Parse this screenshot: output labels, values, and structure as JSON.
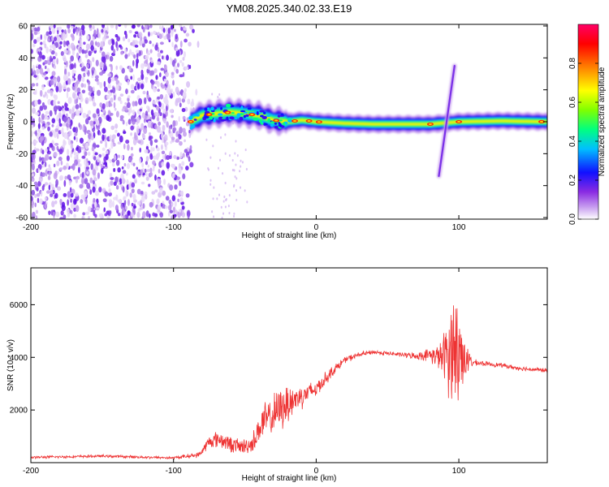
{
  "title": "YM08.2025.340.02.33.E19",
  "chart_data": [
    {
      "type": "heatmap",
      "title": "YM08.2025.340.02.33.E19",
      "xlabel": "Height of straight line (km)",
      "ylabel": "Frequency (Hz)",
      "xlim": [
        -200,
        162
      ],
      "ylim": [
        -61,
        61
      ],
      "x_ticks": [
        -200,
        -100,
        0,
        100
      ],
      "y_ticks": [
        -60,
        -40,
        -20,
        0,
        20,
        40,
        60
      ],
      "colorbar": {
        "label": "Normalized spectral amplitude",
        "range": [
          0,
          1
        ],
        "ticks": [
          "0.0",
          "0.2",
          "0.4",
          "0.6",
          "0.8"
        ],
        "tick_values": [
          0.0,
          0.2,
          0.4,
          0.6,
          0.8
        ],
        "colors": [
          "#ffffff",
          "#c9a0f0",
          "#8a2be2",
          "#0000ff",
          "#00bfff",
          "#00ff80",
          "#80ff00",
          "#ffff00",
          "#ff8000",
          "#ff0000",
          "#ff0066"
        ]
      },
      "noise_region": {
        "x_range": [
          -200,
          -88
        ],
        "y_range": [
          -61,
          61
        ]
      },
      "signal_ridge": [
        {
          "x": -88,
          "y": 0
        },
        {
          "x": -80,
          "y": 4
        },
        {
          "x": -70,
          "y": 5
        },
        {
          "x": -60,
          "y": 6
        },
        {
          "x": -50,
          "y": 5
        },
        {
          "x": -40,
          "y": 4
        },
        {
          "x": -30,
          "y": 1
        },
        {
          "x": -20,
          "y": 0
        },
        {
          "x": -10,
          "y": 1
        },
        {
          "x": 0,
          "y": 0
        },
        {
          "x": 20,
          "y": -1
        },
        {
          "x": 40,
          "y": -1.5
        },
        {
          "x": 60,
          "y": -1.5
        },
        {
          "x": 80,
          "y": -1.5
        },
        {
          "x": 100,
          "y": 0
        },
        {
          "x": 130,
          "y": 0.5
        },
        {
          "x": 162,
          "y": 0
        }
      ],
      "diagonal_feature": {
        "x_start": 86,
        "y_start": -34,
        "x_end": 97,
        "y_end": 35
      },
      "hot_spots_x": [
        -88,
        -75,
        -62,
        -45,
        -28,
        -15,
        -5,
        2,
        80,
        100,
        158
      ]
    },
    {
      "type": "line",
      "xlabel": "Height of straight line (km)",
      "ylabel": "SNR (10 * v/v)",
      "xlim": [
        -200,
        162
      ],
      "ylim": [
        0,
        7400
      ],
      "x_ticks": [
        -200,
        -100,
        0,
        100
      ],
      "y_ticks": [
        2000,
        4000,
        6000
      ],
      "color": "#ee3333",
      "series": [
        {
          "name": "SNR",
          "x": [
            -200,
            -150,
            -100,
            -82,
            -75,
            -68,
            -60,
            -52,
            -45,
            -38,
            -30,
            -22,
            -15,
            -8,
            0,
            10,
            20,
            30,
            40,
            50,
            60,
            70,
            80,
            88,
            93,
            97,
            99,
            101,
            105,
            110,
            120,
            130,
            140,
            150,
            162
          ],
          "y": [
            200,
            250,
            180,
            300,
            800,
            900,
            700,
            600,
            700,
            1500,
            1800,
            2200,
            2400,
            2600,
            2800,
            3400,
            3900,
            4100,
            4200,
            4150,
            4100,
            4050,
            4100,
            4000,
            4200,
            4500,
            3800,
            4200,
            3900,
            3800,
            3750,
            3700,
            3600,
            3550,
            3500
          ],
          "noise_amplitude": [
            60,
            60,
            60,
            120,
            300,
            400,
            350,
            350,
            400,
            800,
            900,
            1000,
            700,
            500,
            400,
            250,
            150,
            120,
            100,
            100,
            100,
            150,
            300,
            700,
            2000,
            2600,
            3500,
            2000,
            700,
            150,
            100,
            100,
            100,
            100,
            100
          ]
        }
      ]
    }
  ]
}
